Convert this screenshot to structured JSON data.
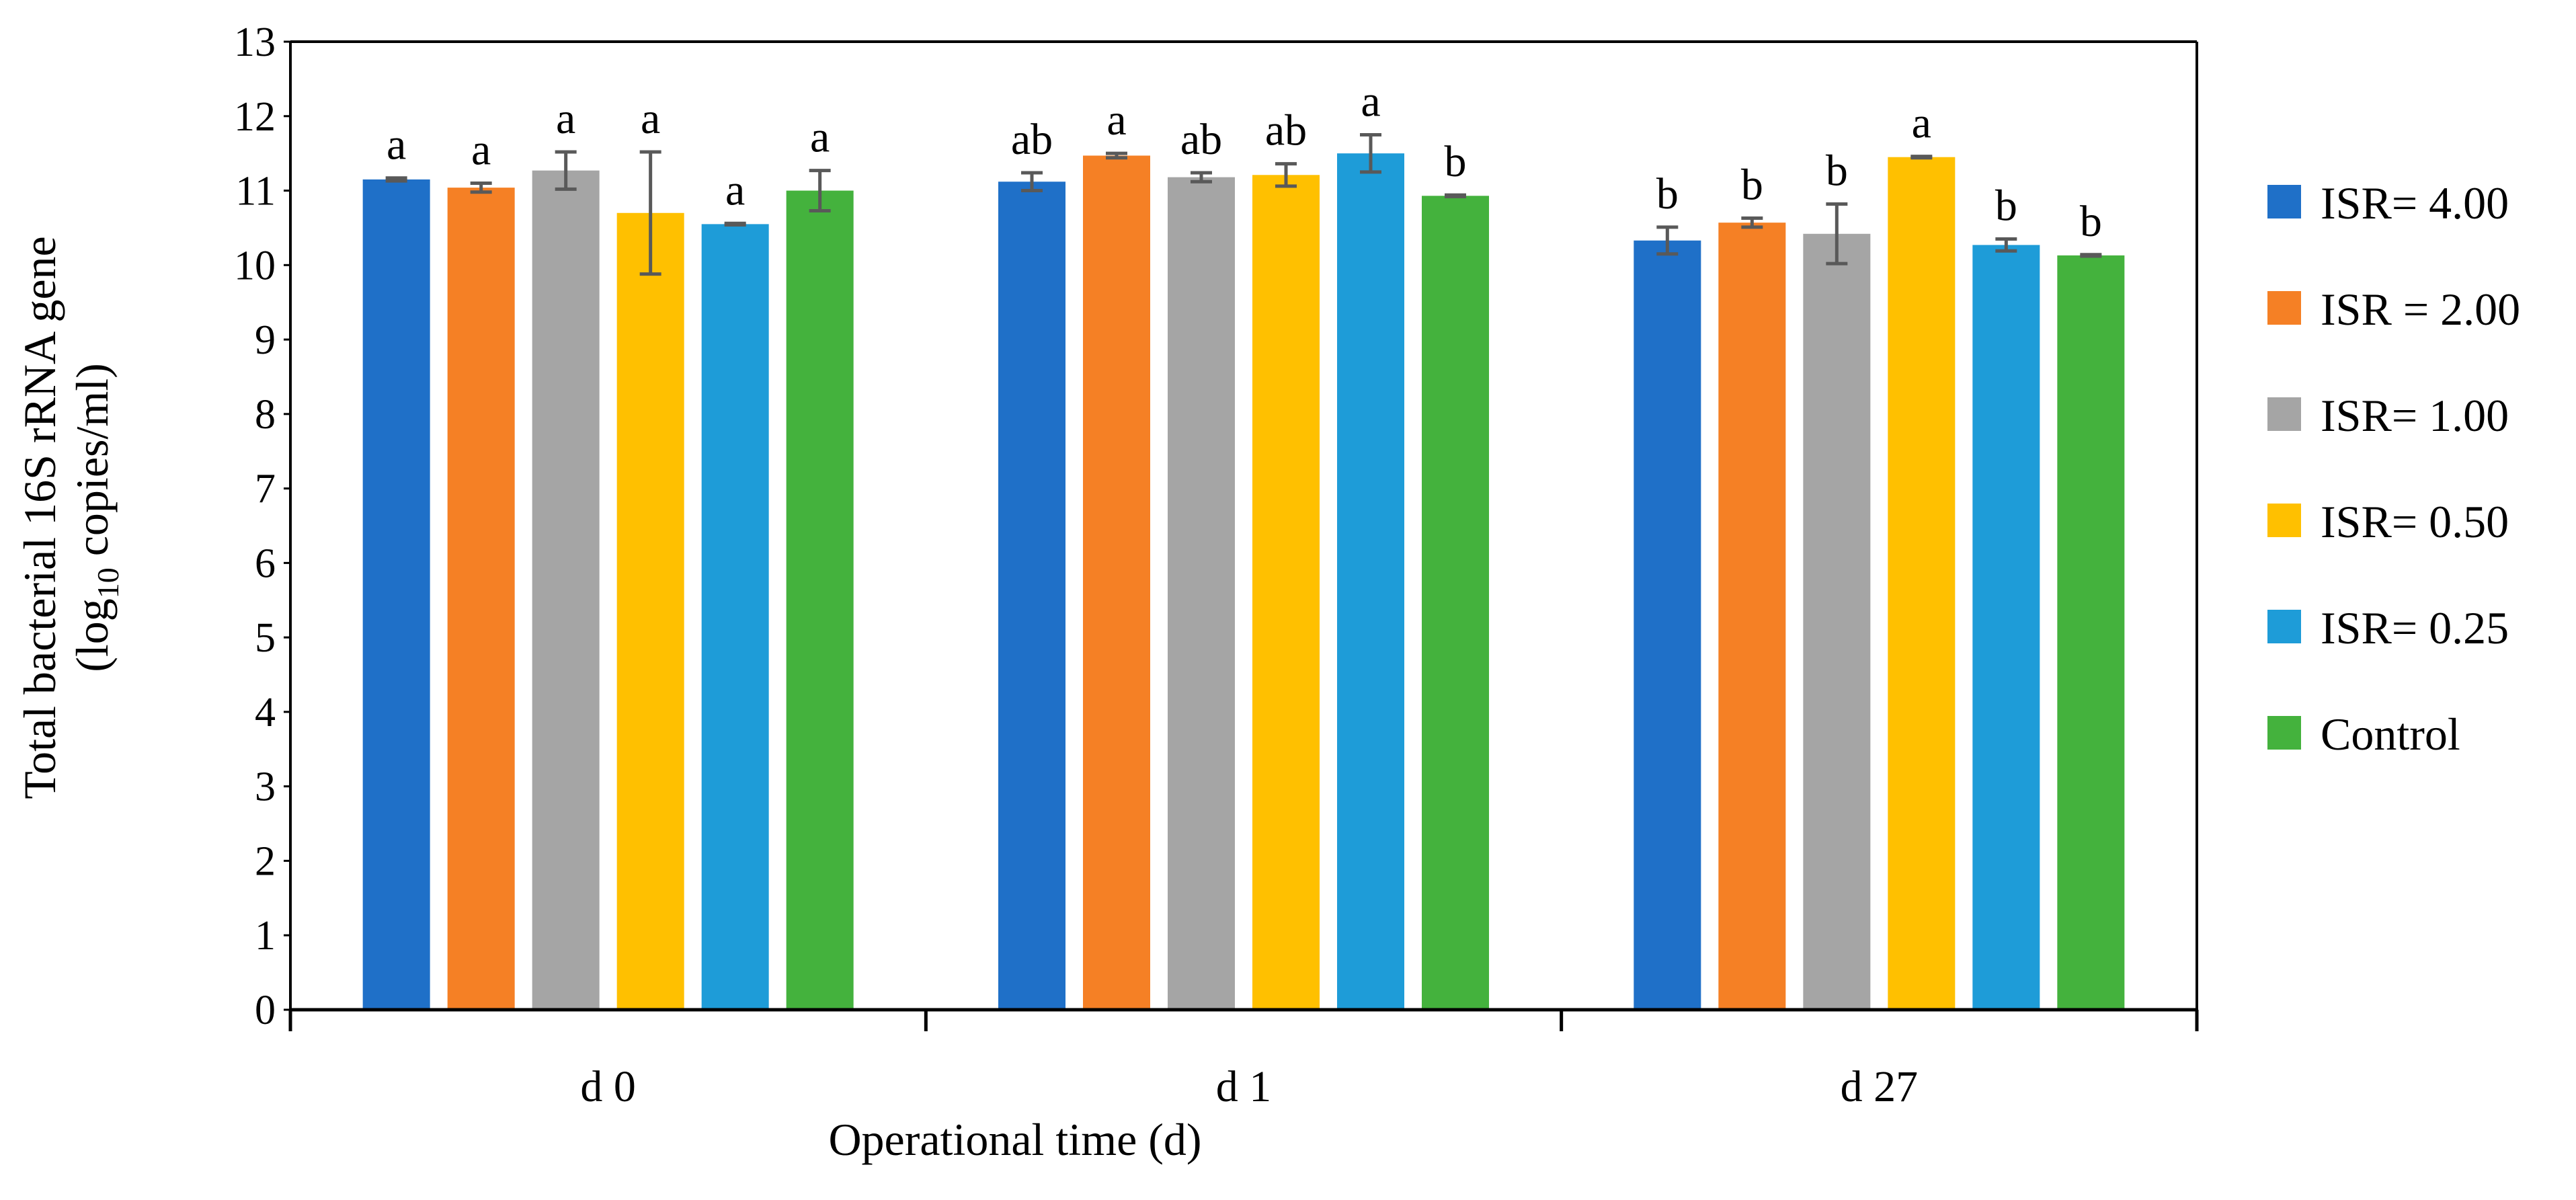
{
  "chart_data": {
    "type": "bar",
    "title": "",
    "xlabel": "Operational time (d)",
    "ylabel_line1": "Total bacterial 16S rRNA gene",
    "ylabel_line2_prefix": "(log",
    "ylabel_line2_sub": "10",
    "ylabel_line2_suffix": " copies/ml)",
    "ylim": [
      0,
      13
    ],
    "yticks": [
      "0",
      "1",
      "2",
      "3",
      "4",
      "5",
      "6",
      "7",
      "8",
      "9",
      "10",
      "11",
      "12",
      "13"
    ],
    "categories": [
      "d 0",
      "d 1",
      "d 27"
    ],
    "legend_position": "right",
    "series": [
      {
        "name": "ISR= 4.00",
        "color": "#1F70C8",
        "values": [
          11.15,
          11.12,
          10.33
        ],
        "errors": [
          0.02,
          0.12,
          0.18
        ],
        "letters": [
          "a",
          "ab",
          "b"
        ]
      },
      {
        "name": "ISR = 2.00",
        "color": "#F58025",
        "values": [
          11.04,
          11.47,
          10.57
        ],
        "errors": [
          0.06,
          0.03,
          0.06
        ],
        "letters": [
          "a",
          "a",
          "b"
        ]
      },
      {
        "name": "ISR= 1.00",
        "color": "#A5A5A5",
        "values": [
          11.27,
          11.18,
          10.42
        ],
        "errors": [
          0.25,
          0.06,
          0.4
        ],
        "letters": [
          "a",
          "ab",
          "b"
        ]
      },
      {
        "name": "ISR= 0.50",
        "color": "#FFC000",
        "values": [
          10.7,
          11.21,
          11.45
        ],
        "errors": [
          0.82,
          0.15,
          0.01
        ],
        "letters": [
          "a",
          "ab",
          "a"
        ]
      },
      {
        "name": "ISR= 0.25",
        "color": "#1E9CD8",
        "values": [
          10.55,
          11.5,
          10.27
        ],
        "errors": [
          0.01,
          0.25,
          0.08
        ],
        "letters": [
          "a",
          "a",
          "b"
        ]
      },
      {
        "name": "Control",
        "color": "#44B23D",
        "values": [
          11.0,
          10.93,
          10.13
        ],
        "errors": [
          0.27,
          0.01,
          0.01
        ],
        "letters": [
          "a",
          "b",
          "b"
        ]
      }
    ],
    "error_bar_color": "#595959"
  }
}
